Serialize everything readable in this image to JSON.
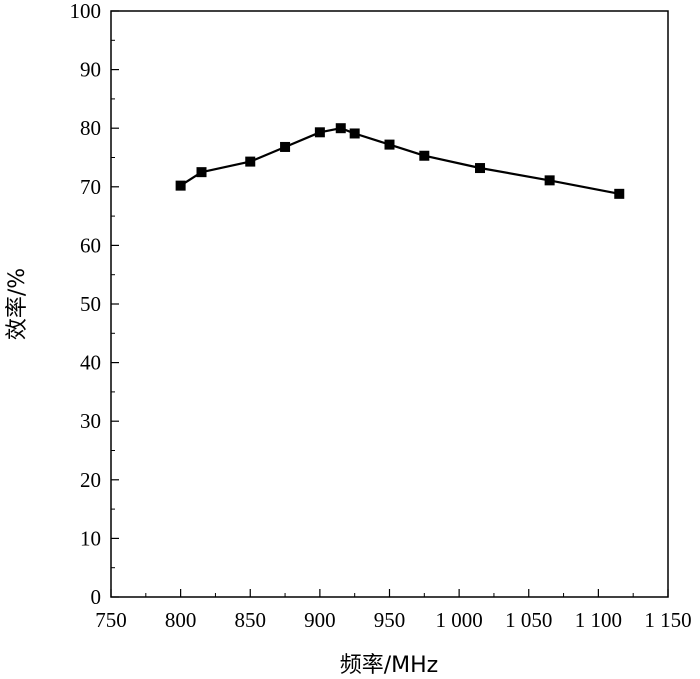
{
  "chart_data": {
    "type": "line",
    "xlabel": "频率/MHz",
    "ylabel": "效率/%",
    "xlim": [
      750,
      1150
    ],
    "ylim": [
      0,
      100
    ],
    "x_ticks": [
      750,
      800,
      850,
      900,
      950,
      1000,
      1050,
      1100,
      1150
    ],
    "x_tick_labels": [
      "750",
      "800",
      "850",
      "900",
      "950",
      "1 000",
      "1 050",
      "1 100",
      "1 150"
    ],
    "y_ticks": [
      0,
      10,
      20,
      30,
      40,
      50,
      60,
      70,
      80,
      90,
      100
    ],
    "y_tick_labels": [
      "0",
      "10",
      "20",
      "30",
      "40",
      "50",
      "60",
      "70",
      "80",
      "90",
      "100"
    ],
    "grid": false,
    "series": [
      {
        "color": "#000000",
        "marker": "square",
        "x": [
          800,
          815,
          850,
          875,
          900,
          915,
          925,
          950,
          975,
          1015,
          1065,
          1115
        ],
        "y": [
          70.2,
          72.5,
          74.3,
          76.8,
          79.3,
          80.0,
          79.1,
          77.2,
          75.3,
          73.2,
          71.1,
          68.8
        ]
      }
    ]
  }
}
